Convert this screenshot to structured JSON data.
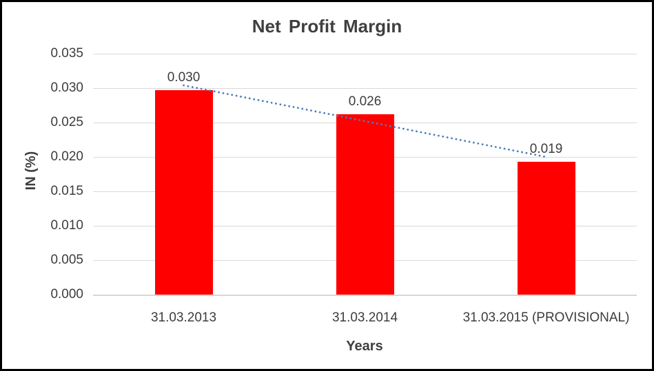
{
  "window": {
    "background_color": "#ffffff",
    "border_color": "#000000"
  },
  "chart_data": {
    "type": "bar",
    "title": "Net Profit Margin",
    "xlabel": "Years",
    "ylabel": "IN (%)",
    "categories": [
      "31.03.2013",
      "31.03.2014",
      "31.03.2015 (PROVISIONAL)"
    ],
    "values": [
      0.0297,
      0.0262,
      0.0193
    ],
    "data_labels": [
      "0.030",
      "0.026",
      "0.019"
    ],
    "ylim": [
      0,
      0.035
    ],
    "ytick_step": 0.005,
    "ytick_labels": [
      "0.000",
      "0.005",
      "0.010",
      "0.015",
      "0.020",
      "0.025",
      "0.030",
      "0.035"
    ],
    "grid": true,
    "legend": "none",
    "bar_color": "#ff0000",
    "gridline_color": "#d9d9d9",
    "text_color": "#3c3c3c",
    "trendline": {
      "type": "linear",
      "style": "dotted",
      "color": "#4a7ebb",
      "start_value": 0.0304,
      "end_value": 0.02
    }
  }
}
